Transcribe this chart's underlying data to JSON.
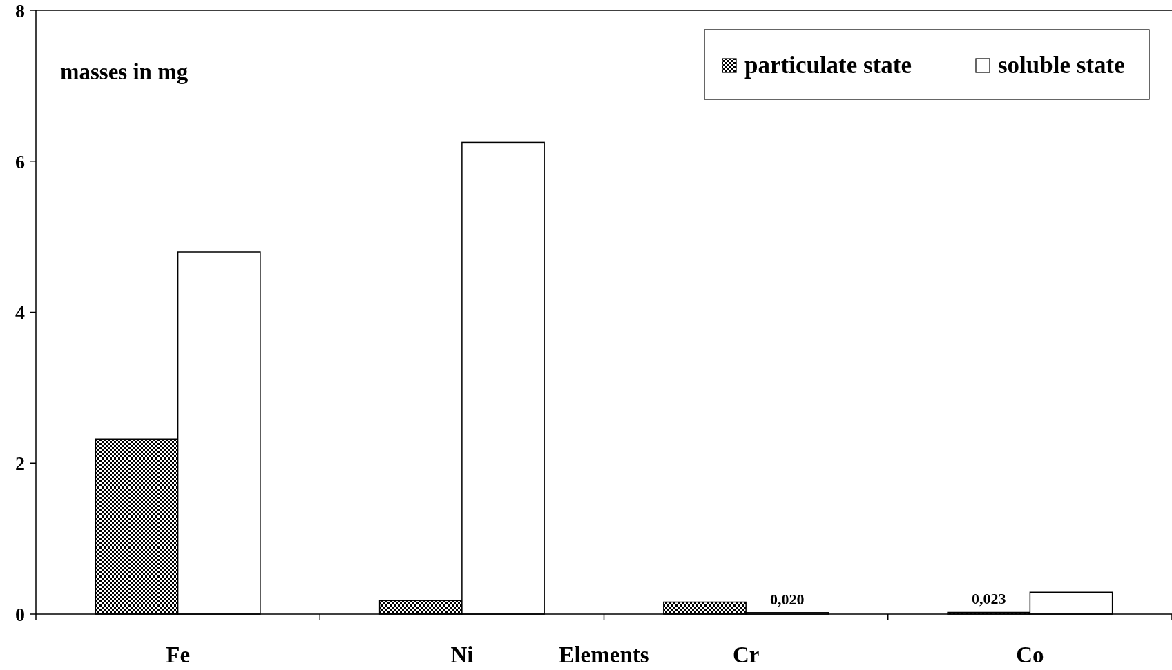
{
  "chart_data": {
    "type": "bar",
    "ylabel": "masses in mg",
    "xlabel": "Elements",
    "categories": [
      "Fe",
      "Ni",
      "Cr",
      "Co"
    ],
    "series": [
      {
        "name": "particulate state",
        "color": "#000000",
        "values": [
          2.32,
          0.18,
          0.16,
          0.023
        ],
        "value_labels": [
          null,
          null,
          null,
          "0,023"
        ]
      },
      {
        "name": "soluble state",
        "color": "#ffffff",
        "values": [
          4.8,
          6.25,
          0.02,
          0.29
        ],
        "value_labels": [
          null,
          null,
          "0,020",
          null
        ]
      }
    ],
    "ylim": [
      0,
      8
    ],
    "yticks": [
      0,
      2,
      4,
      6,
      8
    ],
    "grid": false,
    "legend": "top right"
  }
}
